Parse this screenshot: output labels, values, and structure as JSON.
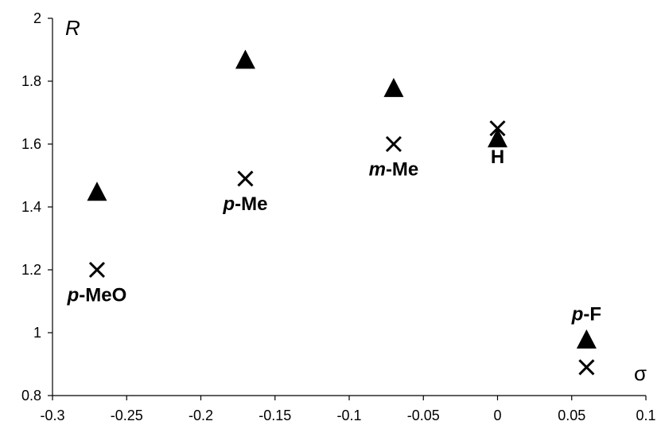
{
  "chart_data": {
    "type": "scatter",
    "xlabel": "σ",
    "ylabel": "R",
    "xlim": [
      -0.3,
      0.1
    ],
    "ylim": [
      0.8,
      2
    ],
    "x_ticks": [
      {
        "value": -0.3,
        "label": "-0.3"
      },
      {
        "value": -0.25,
        "label": "-0.25"
      },
      {
        "value": -0.2,
        "label": "-0.2"
      },
      {
        "value": -0.15,
        "label": "-0.15"
      },
      {
        "value": -0.1,
        "label": "-0.1"
      },
      {
        "value": -0.05,
        "label": "-0.05"
      },
      {
        "value": 0,
        "label": "0"
      },
      {
        "value": 0.05,
        "label": "0.05"
      },
      {
        "value": 0.1,
        "label": "0.1"
      }
    ],
    "y_ticks": [
      {
        "value": 0.8,
        "label": "0.8"
      },
      {
        "value": 1,
        "label": "1"
      },
      {
        "value": 1.2,
        "label": "1.2"
      },
      {
        "value": 1.4,
        "label": "1.4"
      },
      {
        "value": 1.6,
        "label": "1.6"
      },
      {
        "value": 1.8,
        "label": "1.8"
      },
      {
        "value": 2,
        "label": "2"
      }
    ],
    "grid": false,
    "legend": "none",
    "series": [
      {
        "marker": "triangle",
        "color": "#000000",
        "points": [
          {
            "x": -0.27,
            "y": 1.45
          },
          {
            "x": -0.17,
            "y": 1.87
          },
          {
            "x": -0.07,
            "y": 1.78
          },
          {
            "x": 0.0,
            "y": 1.62
          },
          {
            "x": 0.06,
            "y": 0.98
          }
        ]
      },
      {
        "marker": "cross",
        "color": "#000000",
        "points": [
          {
            "x": -0.27,
            "y": 1.2
          },
          {
            "x": -0.17,
            "y": 1.49
          },
          {
            "x": -0.07,
            "y": 1.6
          },
          {
            "x": 0.0,
            "y": 1.65
          },
          {
            "x": 0.06,
            "y": 0.89
          }
        ]
      }
    ],
    "annotations": [
      {
        "prefix": "p",
        "text": "-MeO",
        "x": -0.27,
        "y": 1.12
      },
      {
        "prefix": "p",
        "text": "-Me",
        "x": -0.17,
        "y": 1.41
      },
      {
        "prefix": "m",
        "text": "-Me",
        "x": -0.07,
        "y": 1.52
      },
      {
        "prefix": "",
        "text": "H",
        "x": 0.0,
        "y": 1.56
      },
      {
        "prefix": "p",
        "text": "-F",
        "x": 0.06,
        "y": 1.06
      }
    ]
  }
}
